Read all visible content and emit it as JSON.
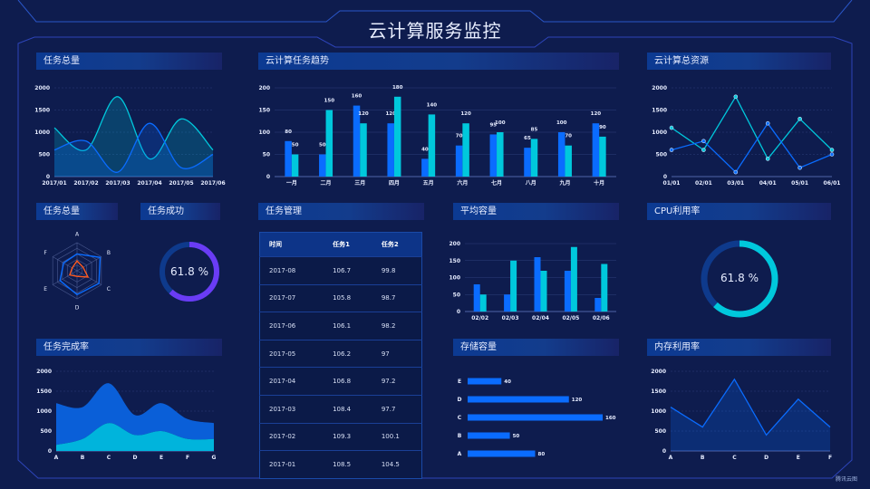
{
  "header": {
    "title": "云计算服务监控"
  },
  "colors": {
    "background": "#0e1c4e",
    "blue": "#0a6cff",
    "cyan": "#00c8dc",
    "purple": "#6a3cf5",
    "orange": "#ff5a1f",
    "panel_header": "#0c3a92"
  },
  "panels": {
    "task_total": "任务总量",
    "trend": "云计算任务趋势",
    "resources": "云计算总资源",
    "task_total_radar": "任务总量",
    "task_success": "任务成功",
    "task_mgmt": "任务管理",
    "avg_capacity": "平均容量",
    "cpu": "CPU利用率",
    "completion": "任务完成率",
    "storage": "存储容量",
    "memory": "内存利用率"
  },
  "task_success": {
    "value": 61.8,
    "label": "61.8 %"
  },
  "cpu": {
    "value": 61.8,
    "label": "61.8 %"
  },
  "table": {
    "headers": [
      "时间",
      "任务1",
      "任务2"
    ],
    "rows": [
      [
        "2017-08",
        "106.7",
        "99.8"
      ],
      [
        "2017-07",
        "105.8",
        "98.7"
      ],
      [
        "2017-06",
        "106.1",
        "98.2"
      ],
      [
        "2017-05",
        "106.2",
        "97"
      ],
      [
        "2017-04",
        "106.8",
        "97.2"
      ],
      [
        "2017-03",
        "108.4",
        "97.7"
      ],
      [
        "2017-02",
        "109.3",
        "100.1"
      ],
      [
        "2017-01",
        "108.5",
        "104.5"
      ]
    ]
  },
  "watermark": "腾讯云图",
  "chart_data": [
    {
      "id": "task_total",
      "type": "area",
      "smooth": true,
      "categories": [
        "2017/01",
        "2017/02",
        "2017/03",
        "2017/04",
        "2017/05",
        "2017/06"
      ],
      "yticks": [
        0,
        500,
        1000,
        1500,
        2000
      ],
      "ylim": [
        0,
        2000
      ],
      "grid": true,
      "series": [
        {
          "values": [
            1100,
            600,
            1800,
            400,
            1300,
            600
          ],
          "color": "#00c8dc"
        },
        {
          "values": [
            600,
            800,
            100,
            1200,
            200,
            500
          ],
          "color": "#0a6cff"
        }
      ]
    },
    {
      "id": "trend",
      "type": "bar",
      "categories": [
        "一月",
        "二月",
        "三月",
        "四月",
        "五月",
        "六月",
        "七月",
        "八月",
        "九月",
        "十月"
      ],
      "yticks": [
        0,
        50,
        100,
        150,
        200
      ],
      "ylim": [
        0,
        200
      ],
      "grid": true,
      "data_labels": true,
      "series": [
        {
          "values": [
            80,
            50,
            160,
            120,
            40,
            70,
            95,
            65,
            100,
            120
          ],
          "color": "#0a6cff"
        },
        {
          "values": [
            50,
            150,
            120,
            180,
            140,
            120,
            100,
            85,
            70,
            90
          ],
          "color": "#00c8dc"
        }
      ]
    },
    {
      "id": "resources",
      "type": "line",
      "markers": true,
      "categories": [
        "01/01",
        "02/01",
        "03/01",
        "04/01",
        "05/01",
        "06/01"
      ],
      "yticks": [
        0,
        500,
        1000,
        1500,
        2000
      ],
      "ylim": [
        0,
        2000
      ],
      "grid": true,
      "series": [
        {
          "values": [
            1100,
            600,
            1800,
            400,
            1300,
            600
          ],
          "color": "#00c8dc"
        },
        {
          "values": [
            600,
            800,
            100,
            1200,
            200,
            500
          ],
          "color": "#0a6cff"
        }
      ]
    },
    {
      "id": "radar",
      "type": "radar",
      "indicators": [
        "A",
        "B",
        "C",
        "D",
        "E",
        "F"
      ],
      "max": 100,
      "series": [
        {
          "values": [
            60,
            95,
            90,
            85,
            70,
            55
          ],
          "color": "#0a6cff"
        },
        {
          "values": [
            35,
            25,
            45,
            20,
            30,
            20
          ],
          "color": "#ff5a1f"
        }
      ]
    },
    {
      "id": "avg_capacity",
      "type": "bar",
      "categories": [
        "02/02",
        "02/03",
        "02/04",
        "02/05",
        "02/06"
      ],
      "yticks": [
        0,
        50,
        100,
        150,
        200
      ],
      "ylim": [
        0,
        200
      ],
      "grid": true,
      "series": [
        {
          "values": [
            80,
            50,
            160,
            120,
            40
          ],
          "color": "#0a6cff"
        },
        {
          "values": [
            50,
            150,
            120,
            190,
            140
          ],
          "color": "#00c8dc"
        }
      ]
    },
    {
      "id": "completion",
      "type": "stacked-area",
      "smooth": true,
      "categories": [
        "A",
        "B",
        "C",
        "D",
        "E",
        "F",
        "G"
      ],
      "yticks": [
        0,
        500,
        1000,
        1500,
        2000
      ],
      "ylim": [
        0,
        2000
      ],
      "grid": true,
      "series": [
        {
          "values": [
            150,
            300,
            700,
            400,
            500,
            300,
            300
          ],
          "color": "#00b4dc"
        },
        {
          "values": [
            1050,
            800,
            1000,
            500,
            700,
            500,
            400
          ],
          "color": "#0a5fd8"
        }
      ]
    },
    {
      "id": "storage",
      "type": "hbar",
      "categories": [
        "E",
        "D",
        "C",
        "B",
        "A"
      ],
      "values": [
        40,
        120,
        160,
        50,
        80
      ],
      "xlim": [
        0,
        160
      ],
      "color": "#0a6cff",
      "data_labels": true
    },
    {
      "id": "memory",
      "type": "area",
      "categories": [
        "A",
        "B",
        "C",
        "D",
        "E",
        "F"
      ],
      "yticks": [
        0,
        500,
        1000,
        1500,
        2000
      ],
      "ylim": [
        0,
        2000
      ],
      "grid": true,
      "series": [
        {
          "values": [
            1100,
            600,
            1800,
            400,
            1300,
            600
          ],
          "color": "#0a6cff"
        }
      ]
    }
  ]
}
